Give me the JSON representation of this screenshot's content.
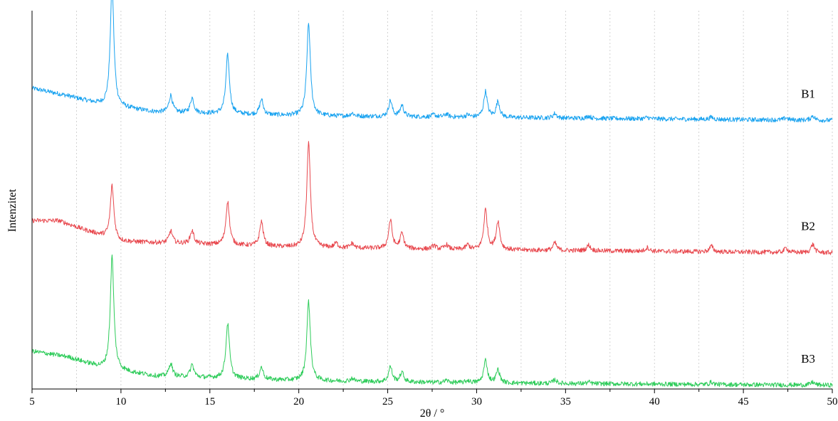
{
  "chart_data": {
    "type": "line",
    "title": "",
    "xlabel": "2θ / °",
    "ylabel": "Intenzitet",
    "xlim": [
      5,
      50
    ],
    "ylim": [
      0,
      1
    ],
    "y_scale": "arbitrary units, traces vertically offset",
    "x_ticks": [
      5,
      10,
      15,
      20,
      25,
      30,
      35,
      40,
      45,
      50
    ],
    "x_tick_labels": [
      "5",
      "10",
      "15",
      "20",
      "25",
      "30",
      "35",
      "40",
      "45",
      "50"
    ],
    "x_minor_ticks": [
      7.5,
      12.5,
      17.5,
      22.5,
      27.5,
      32.5,
      37.5,
      42.5,
      47.5
    ],
    "grid": {
      "vertical": true,
      "horizontal": false,
      "style": "dotted"
    },
    "legend": "labels placed at right end of each trace",
    "series": [
      {
        "name": "B1",
        "color": "#1aa3f0",
        "offset": 0.7,
        "baseline": 0.01,
        "hump": [
          [
            5,
            0.085
          ],
          [
            7,
            0.065
          ],
          [
            9,
            0.04
          ],
          [
            12,
            0.022
          ],
          [
            20,
            0.012
          ],
          [
            30,
            0.008
          ],
          [
            50,
            0.0
          ]
        ],
        "peaks": [
          {
            "x": 9.5,
            "y": 0.325
          },
          {
            "x": 12.8,
            "y": 0.045
          },
          {
            "x": 14.0,
            "y": 0.04
          },
          {
            "x": 16.0,
            "y": 0.155
          },
          {
            "x": 17.9,
            "y": 0.04
          },
          {
            "x": 20.55,
            "y": 0.245
          },
          {
            "x": 23.0,
            "y": 0.008
          },
          {
            "x": 25.15,
            "y": 0.042
          },
          {
            "x": 25.8,
            "y": 0.03
          },
          {
            "x": 27.6,
            "y": 0.006
          },
          {
            "x": 28.3,
            "y": 0.008
          },
          {
            "x": 29.5,
            "y": 0.006
          },
          {
            "x": 30.5,
            "y": 0.068
          },
          {
            "x": 31.2,
            "y": 0.042
          },
          {
            "x": 34.4,
            "y": 0.012
          },
          {
            "x": 36.3,
            "y": 0.006
          },
          {
            "x": 39.6,
            "y": 0.004
          },
          {
            "x": 43.2,
            "y": 0.006
          },
          {
            "x": 47.4,
            "y": 0.006
          },
          {
            "x": 48.9,
            "y": 0.012
          }
        ]
      },
      {
        "name": "B2",
        "color": "#e8484e",
        "offset": 0.35,
        "baseline": 0.01,
        "hump": [
          [
            5,
            0.085
          ],
          [
            6.5,
            0.085
          ],
          [
            8,
            0.06
          ],
          [
            10,
            0.03
          ],
          [
            20,
            0.014
          ],
          [
            30,
            0.008
          ],
          [
            50,
            0.0
          ]
        ],
        "peaks": [
          {
            "x": 9.5,
            "y": 0.14
          },
          {
            "x": 12.8,
            "y": 0.032
          },
          {
            "x": 14.0,
            "y": 0.035
          },
          {
            "x": 16.0,
            "y": 0.115
          },
          {
            "x": 17.9,
            "y": 0.065
          },
          {
            "x": 20.55,
            "y": 0.275
          },
          {
            "x": 22.1,
            "y": 0.012
          },
          {
            "x": 23.0,
            "y": 0.012
          },
          {
            "x": 25.15,
            "y": 0.075
          },
          {
            "x": 25.8,
            "y": 0.04
          },
          {
            "x": 27.6,
            "y": 0.01
          },
          {
            "x": 28.3,
            "y": 0.012
          },
          {
            "x": 29.5,
            "y": 0.012
          },
          {
            "x": 30.5,
            "y": 0.105
          },
          {
            "x": 31.2,
            "y": 0.075
          },
          {
            "x": 34.4,
            "y": 0.02
          },
          {
            "x": 36.3,
            "y": 0.015
          },
          {
            "x": 39.6,
            "y": 0.01
          },
          {
            "x": 43.2,
            "y": 0.015
          },
          {
            "x": 47.4,
            "y": 0.012
          },
          {
            "x": 48.9,
            "y": 0.022
          }
        ]
      },
      {
        "name": "B3",
        "color": "#2ecc5a",
        "offset": 0.0,
        "baseline": 0.01,
        "hump": [
          [
            5,
            0.09
          ],
          [
            7,
            0.075
          ],
          [
            9,
            0.045
          ],
          [
            12,
            0.024
          ],
          [
            20,
            0.012
          ],
          [
            30,
            0.006
          ],
          [
            50,
            0.0
          ]
        ],
        "peaks": [
          {
            "x": 9.5,
            "y": 0.3
          },
          {
            "x": 12.8,
            "y": 0.035
          },
          {
            "x": 14.0,
            "y": 0.033
          },
          {
            "x": 16.0,
            "y": 0.145
          },
          {
            "x": 17.9,
            "y": 0.032
          },
          {
            "x": 20.55,
            "y": 0.21
          },
          {
            "x": 23.0,
            "y": 0.008
          },
          {
            "x": 25.15,
            "y": 0.04
          },
          {
            "x": 25.8,
            "y": 0.025
          },
          {
            "x": 28.3,
            "y": 0.006
          },
          {
            "x": 29.5,
            "y": 0.006
          },
          {
            "x": 30.5,
            "y": 0.06
          },
          {
            "x": 31.2,
            "y": 0.035
          },
          {
            "x": 34.4,
            "y": 0.01
          },
          {
            "x": 36.3,
            "y": 0.004
          },
          {
            "x": 43.2,
            "y": 0.006
          },
          {
            "x": 48.9,
            "y": 0.008
          }
        ]
      }
    ]
  }
}
